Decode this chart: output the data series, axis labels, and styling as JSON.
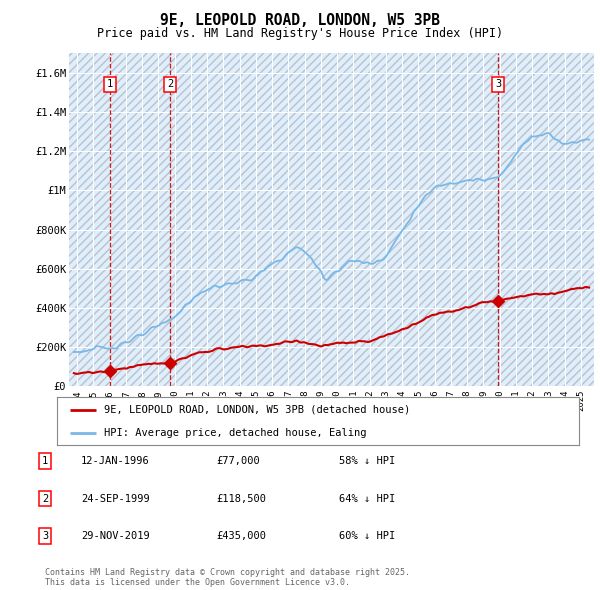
{
  "title": "9E, LEOPOLD ROAD, LONDON, W5 3PB",
  "subtitle": "Price paid vs. HM Land Registry's House Price Index (HPI)",
  "sale_info": [
    [
      "1",
      "12-JAN-1996",
      "£77,000",
      "58% ↓ HPI"
    ],
    [
      "2",
      "24-SEP-1999",
      "£118,500",
      "64% ↓ HPI"
    ],
    [
      "3",
      "29-NOV-2019",
      "£435,000",
      "60% ↓ HPI"
    ]
  ],
  "legend_labels": [
    "9E, LEOPOLD ROAD, LONDON, W5 3PB (detached house)",
    "HPI: Average price, detached house, Ealing"
  ],
  "hpi_color": "#7ab8e8",
  "sale_color": "#cc0000",
  "plot_bg_color": "#ddeeff",
  "grid_color": "#ffffff",
  "ylabel_ticks": [
    "£0",
    "£200K",
    "£400K",
    "£600K",
    "£800K",
    "£1M",
    "£1.2M",
    "£1.4M",
    "£1.6M"
  ],
  "ytick_values": [
    0,
    200000,
    400000,
    600000,
    800000,
    1000000,
    1200000,
    1400000,
    1600000
  ],
  "ylim": [
    0,
    1700000
  ],
  "xlim_start": 1993.5,
  "xlim_end": 2025.8,
  "sale_years": [
    1996.04,
    1999.73,
    2019.91
  ],
  "sale_prices": [
    77000,
    118500,
    435000
  ],
  "footnote": "Contains HM Land Registry data © Crown copyright and database right 2025.\nThis data is licensed under the Open Government Licence v3.0."
}
